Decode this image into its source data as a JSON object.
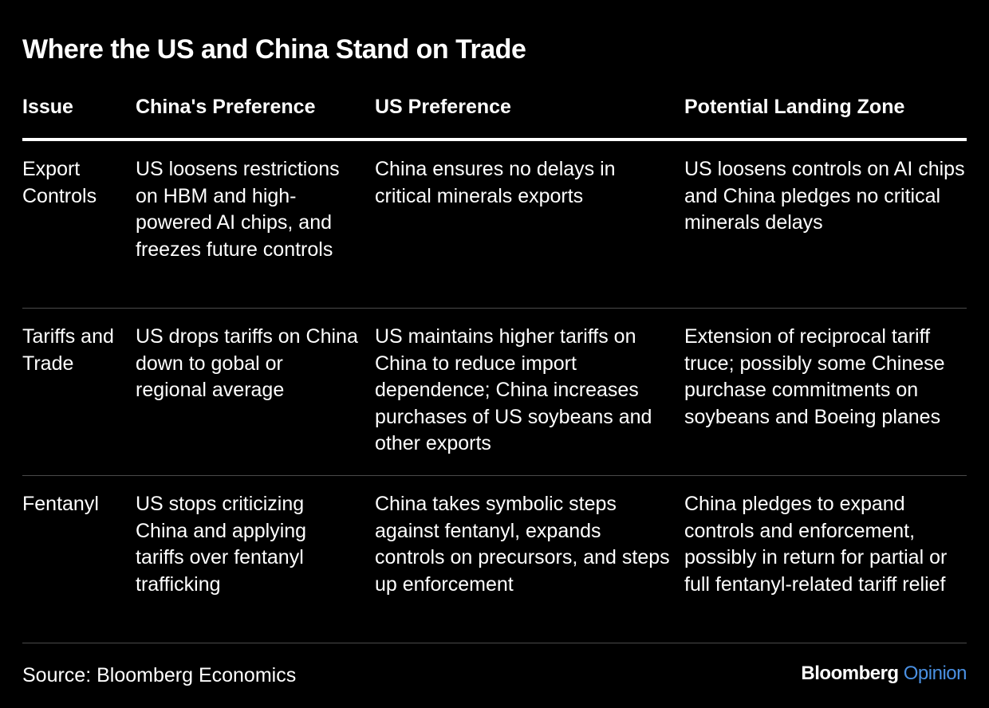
{
  "title": "Where the US and China Stand on Trade",
  "columns": [
    "Issue",
    "China's Preference",
    "US Preference",
    "Potential Landing Zone"
  ],
  "rows": [
    {
      "issue": "Export Controls",
      "china": "US loosens restrictions on HBM and high-powered AI chips, and freezes future controls",
      "us": "China ensures no delays in critical minerals exports",
      "landing": "US loosens controls on AI chips and China pledges no critical minerals delays"
    },
    {
      "issue": "Tariffs and Trade",
      "china": "US drops tariffs on China down to gobal or regional average",
      "us": "US maintains higher tariffs on China to reduce import dependence; China increases purchases of US soybeans and other exports",
      "landing": "Extension of reciprocal tariff truce; possibly some Chinese purchase commitments on soybeans and Boeing planes"
    },
    {
      "issue": "Fentanyl",
      "china": "US stops criticizing China and applying tariffs over fentanyl trafficking",
      "us": "China takes symbolic steps against fentanyl, expands controls on precursors, and steps up enforcement",
      "landing": "China pledges to expand controls and enforcement, possibly in return for partial or full fentanyl-related tariff relief"
    }
  ],
  "footer": {
    "source": "Source: Bloomberg Economics",
    "brand_name": "Bloomberg",
    "brand_sub": "Opinion"
  },
  "colors": {
    "background": "#000000",
    "text": "#ffffff",
    "accent": "#4a90e2",
    "divider": "#4a4a4a"
  }
}
